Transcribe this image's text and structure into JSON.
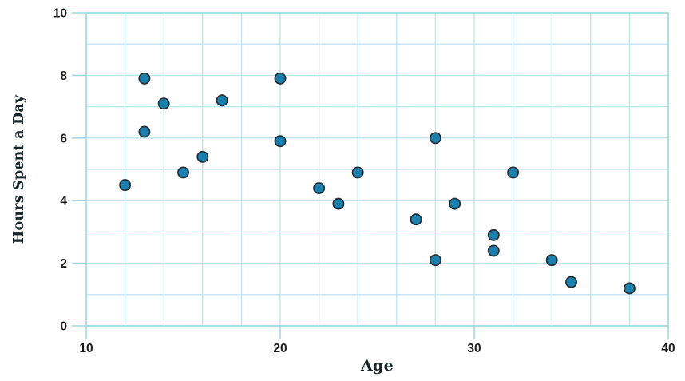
{
  "chart_data": {
    "type": "scatter",
    "title": "",
    "xlabel": "Age",
    "ylabel": "Hours Spent a Day",
    "xlim": [
      10,
      40
    ],
    "ylim": [
      0,
      10
    ],
    "x_ticks": [
      10,
      20,
      30,
      40
    ],
    "y_ticks": [
      0,
      2,
      4,
      6,
      8,
      10
    ],
    "x_grid_step": 2,
    "y_grid_step": 1,
    "grid": true,
    "legend": false,
    "points": [
      {
        "x": 12,
        "y": 4.5
      },
      {
        "x": 13,
        "y": 6.2
      },
      {
        "x": 13,
        "y": 7.9
      },
      {
        "x": 14,
        "y": 7.1
      },
      {
        "x": 15,
        "y": 4.9
      },
      {
        "x": 16,
        "y": 5.4
      },
      {
        "x": 17,
        "y": 7.2
      },
      {
        "x": 20,
        "y": 5.9
      },
      {
        "x": 20,
        "y": 7.9
      },
      {
        "x": 22,
        "y": 4.4
      },
      {
        "x": 23,
        "y": 3.9
      },
      {
        "x": 24,
        "y": 4.9
      },
      {
        "x": 27,
        "y": 3.4
      },
      {
        "x": 28,
        "y": 2.1
      },
      {
        "x": 28,
        "y": 6.0
      },
      {
        "x": 29,
        "y": 3.9
      },
      {
        "x": 31,
        "y": 2.4
      },
      {
        "x": 31,
        "y": 2.9
      },
      {
        "x": 32,
        "y": 4.9
      },
      {
        "x": 34,
        "y": 2.1
      },
      {
        "x": 35,
        "y": 1.4
      },
      {
        "x": 38,
        "y": 1.2
      }
    ]
  },
  "colors": {
    "background": "#ffffff",
    "grid": "#bfe5ee",
    "axis_frame": "#a3d9e6",
    "tick": "#a3d9e6",
    "marker_fill": "#1b80ad",
    "marker_stroke": "#262d33",
    "tick_text": "#1d1d1d",
    "title_text": "#17262b"
  }
}
